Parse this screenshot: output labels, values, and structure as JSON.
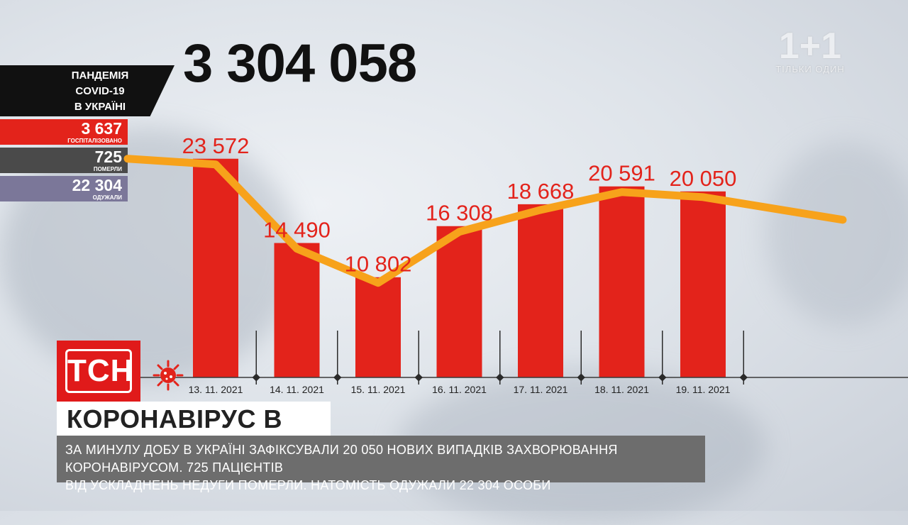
{
  "total_cases": "3 304 058",
  "panel": {
    "title_lines": [
      "ПАНДЕМІЯ",
      "COVID-19",
      "В УКРАЇНІ"
    ]
  },
  "stats": [
    {
      "value": "3 637",
      "label": "ГОСПІТАЛІЗОВАНО",
      "color": "#e3231b"
    },
    {
      "value": "725",
      "label": "ПОМЕРЛИ",
      "color": "#4a4a4a"
    },
    {
      "value": "22 304",
      "label": "ОДУЖАЛИ",
      "color": "#7b7799"
    }
  ],
  "brand": {
    "tsn": "ТСН",
    "channel_logo": "1+1",
    "channel_slogan": "ТІЛЬКИ ОДИН"
  },
  "headline": "КОРОНАВІРУС В УКРАЇНІ",
  "ticker_lines": [
    "ЗА МИНУЛУ ДОБУ В УКРАЇНІ ЗАФІКСУВАЛИ 20 050 НОВИХ ВИПАДКІВ ЗАХВОРЮВАННЯ КОРОНАВІРУСОМ. 725 ПАЦІЄНТІВ",
    "ВІД УСКЛАДНЕНЬ НЕДУГИ ПОМЕРЛИ. НАТОМІСТЬ ОДУЖАЛИ 22 304 ОСОБИ"
  ],
  "colors": {
    "bar": "#e3231b",
    "trend": "#f7a21b",
    "value_label": "#e3231b"
  },
  "chart_data": {
    "type": "bar",
    "categories": [
      "13. 11. 2021",
      "14. 11. 2021",
      "15. 11. 2021",
      "16. 11. 2021",
      "17. 11. 2021",
      "18. 11. 2021",
      "19. 11. 2021"
    ],
    "values": [
      23572,
      14490,
      10802,
      16308,
      18668,
      20591,
      20050
    ],
    "value_labels": [
      "23 572",
      "14 490",
      "10 802",
      "16 308",
      "18 668",
      "20 591",
      "20 050"
    ],
    "ylim": [
      0,
      26000
    ],
    "trend_line": true,
    "grid": false,
    "legend": "none"
  }
}
